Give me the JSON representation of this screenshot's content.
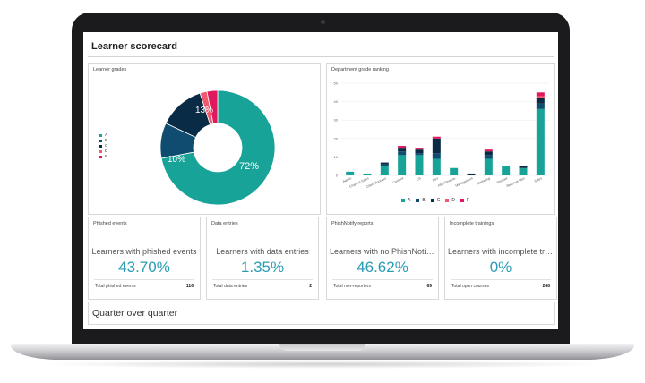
{
  "header": {
    "title": "Learner scorecard"
  },
  "grades_panel": {
    "title": "Learner grades",
    "legend": [
      {
        "label": "A",
        "color": "#17a398"
      },
      {
        "label": "B",
        "color": "#0f4c6f"
      },
      {
        "label": "C",
        "color": "#0a2b45"
      },
      {
        "label": "D",
        "color": "#f05a6e"
      },
      {
        "label": "F",
        "color": "#e0185d"
      }
    ]
  },
  "ranking_panel": {
    "title": "Department grade ranking"
  },
  "chart_data": [
    {
      "type": "pie",
      "title": "Learner grades",
      "categories": [
        "A",
        "B",
        "C",
        "D",
        "F"
      ],
      "values": [
        72,
        10,
        13,
        2,
        3
      ],
      "data_labels": [
        "72%",
        "10%",
        "13%",
        "",
        "3%"
      ],
      "colors": [
        "#17a398",
        "#0f4c6f",
        "#0a2b45",
        "#f05a6e",
        "#e0185d"
      ],
      "legend": "left"
    },
    {
      "type": "bar",
      "stacked": true,
      "title": "Department grade ranking",
      "categories": [
        "Admin",
        "Channel Sales",
        "Client Success",
        "Content",
        "CS",
        "Dev",
        "HR / Finance",
        "Management",
        "Marketing",
        "Product",
        "Revenue Ops",
        "Sales"
      ],
      "series": [
        {
          "name": "A",
          "color": "#17a398",
          "values": [
            2,
            1,
            5,
            11,
            11,
            9,
            4,
            0,
            9,
            5,
            4,
            36
          ]
        },
        {
          "name": "B",
          "color": "#0f4c6f",
          "values": [
            0,
            0,
            1,
            2,
            1,
            3,
            0,
            0,
            2,
            0,
            0,
            3
          ]
        },
        {
          "name": "C",
          "color": "#0a2b45",
          "values": [
            0,
            0,
            1,
            2,
            2,
            8,
            0,
            1,
            2,
            0,
            1,
            3
          ]
        },
        {
          "name": "D",
          "color": "#f05a6e",
          "values": [
            0,
            0,
            0,
            0,
            0,
            0,
            0,
            0,
            0,
            0,
            0,
            1
          ]
        },
        {
          "name": "F",
          "color": "#e0185d",
          "values": [
            0,
            0,
            0,
            1,
            1,
            1,
            0,
            0,
            1,
            0,
            0,
            2
          ]
        }
      ],
      "ylim": [
        0,
        50
      ],
      "yticks": [
        0,
        10,
        20,
        30,
        40,
        50
      ],
      "grid": true,
      "legend": "bottom"
    }
  ],
  "cards": [
    {
      "title": "Phished events",
      "subtitle": "Learners with phished events",
      "value": "43.70%",
      "foot_label": "Total phished events",
      "foot_value": "116"
    },
    {
      "title": "Data entries",
      "subtitle": "Learners with data entries",
      "value": "1.35%",
      "foot_label": "Total data entries",
      "foot_value": "2"
    },
    {
      "title": "PhishNotify reports",
      "subtitle": "Learners with no PhishNotify r...",
      "value": "46.62%",
      "foot_label": "Total non-reporters",
      "foot_value": "69"
    },
    {
      "title": "Incomplete trainings",
      "subtitle": "Learners with incomplete traini...",
      "value": "0%",
      "foot_label": "Total open courses",
      "foot_value": "248"
    }
  ],
  "qoq": {
    "title": "Quarter over quarter"
  }
}
